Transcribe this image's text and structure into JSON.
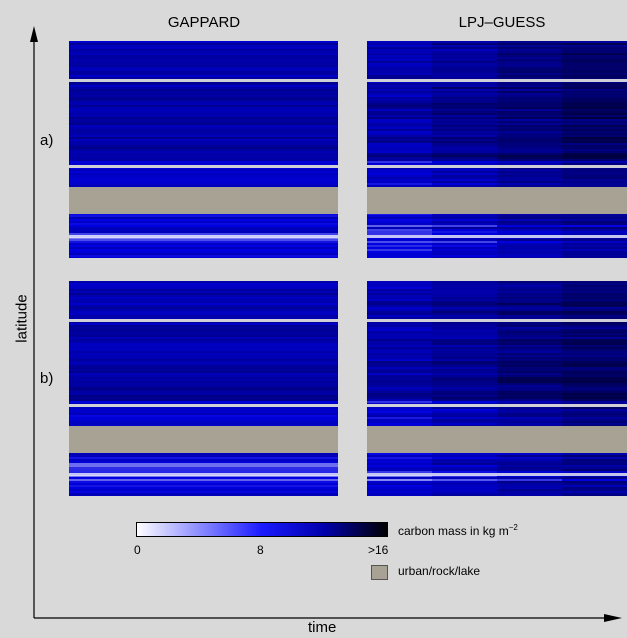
{
  "columns": [
    "GAPPARD",
    "LPJ–GUESS"
  ],
  "rows": [
    "a)",
    "b)"
  ],
  "axes": {
    "y_label": "latitude",
    "x_label": "time"
  },
  "colorbar": {
    "label_main": "carbon mass in kg m",
    "label_sup": "−2",
    "ticks": [
      "0",
      "8",
      ">16"
    ],
    "colors": [
      "#ffffff",
      "#1a1aff",
      "#0000cc",
      "#000000"
    ]
  },
  "legend": {
    "swatch_color": "#a8a294",
    "label": "urban/rock/lake"
  },
  "colors": {
    "background": "#d9d9d9",
    "grey_band": "#a8a294",
    "blue": "#0000cc"
  }
}
